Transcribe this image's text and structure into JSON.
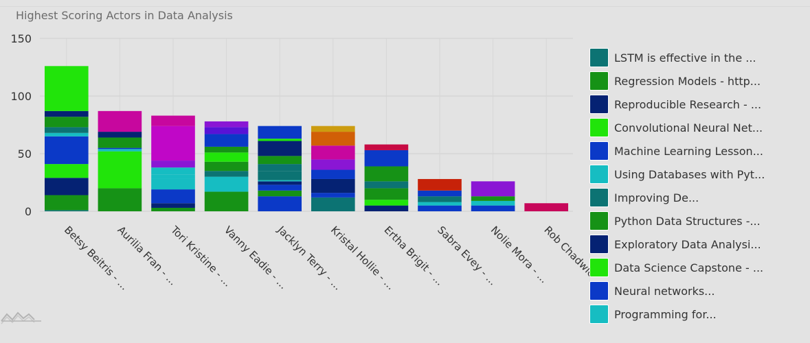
{
  "chart_data": {
    "type": "bar",
    "stacked": true,
    "title": "Highest Scoring Actors in Data Analysis",
    "xlabel": "",
    "ylabel": "",
    "ylim": [
      0,
      150
    ],
    "yticks": [
      0,
      50,
      100,
      150
    ],
    "grid": true,
    "legend_position": "right",
    "categories": [
      "Betsy Beitris - ...",
      "Aurilia Fran - ...",
      "Tori Kristine - ...",
      "Vanny Eadie - ...",
      "Jacklyn Terry - ...",
      "Kristal Hollie - ...",
      "Ertha Brigit - ...",
      "Sabra Evey - ...",
      "Nolie Mora - ...",
      "Rob Chadwick"
    ],
    "stacks": [
      [
        {
          "value": 1,
          "color": "#0c7373"
        },
        {
          "value": 13,
          "color": "#169216"
        },
        {
          "value": 15,
          "color": "#052273"
        },
        {
          "value": 12,
          "color": "#21e40a"
        },
        {
          "value": 24,
          "color": "#0b39c7"
        },
        {
          "value": 3,
          "color": "#16bdc2"
        },
        {
          "value": 5,
          "color": "#0c7373"
        },
        {
          "value": 9,
          "color": "#169216"
        },
        {
          "value": 5,
          "color": "#052273"
        },
        {
          "value": 39,
          "color": "#21e40a"
        }
      ],
      [
        {
          "value": 20,
          "color": "#169216"
        },
        {
          "value": 32,
          "color": "#21e40a"
        },
        {
          "value": 2,
          "color": "#16bdc2"
        },
        {
          "value": 1,
          "color": "#0b39c7"
        },
        {
          "value": 9,
          "color": "#169216"
        },
        {
          "value": 5,
          "color": "#052273"
        },
        {
          "value": 18,
          "color": "#c7079e"
        }
      ],
      [
        {
          "value": 3,
          "color": "#169216"
        },
        {
          "value": 4,
          "color": "#052273"
        },
        {
          "value": 12,
          "color": "#0b39c7"
        },
        {
          "value": 9,
          "color": "#16bdc2"
        },
        {
          "value": 4,
          "color": "#16bdc2"
        },
        {
          "value": 6,
          "color": "#16bdc2"
        },
        {
          "value": 6,
          "color": "#8a16d4"
        },
        {
          "value": 6,
          "color": "#c007c7"
        },
        {
          "value": 24,
          "color": "#c007c7"
        },
        {
          "value": 9,
          "color": "#c7079e"
        }
      ],
      [
        {
          "value": 17,
          "color": "#169216"
        },
        {
          "value": 13,
          "color": "#16bdc2"
        },
        {
          "value": 5,
          "color": "#0c7373"
        },
        {
          "value": 8,
          "color": "#169216"
        },
        {
          "value": 8,
          "color": "#21e40a"
        },
        {
          "value": 5,
          "color": "#169216"
        },
        {
          "value": 11,
          "color": "#0b39c7"
        },
        {
          "value": 6,
          "color": "#5813d6"
        },
        {
          "value": 5,
          "color": "#8a16d4"
        }
      ],
      [
        {
          "value": 13,
          "color": "#0b39c7"
        },
        {
          "value": 5,
          "color": "#169216"
        },
        {
          "value": 5,
          "color": "#0b39c7"
        },
        {
          "value": 3,
          "color": "#052273"
        },
        {
          "value": 1,
          "color": "#16bdc2"
        },
        {
          "value": 8,
          "color": "#0c7373"
        },
        {
          "value": 6,
          "color": "#0c7373"
        },
        {
          "value": 7,
          "color": "#169216"
        },
        {
          "value": 13,
          "color": "#052273"
        },
        {
          "value": 2,
          "color": "#21e40a"
        },
        {
          "value": 11,
          "color": "#0b39c7"
        }
      ],
      [
        {
          "value": 12,
          "color": "#0c7373"
        },
        {
          "value": 4,
          "color": "#0b39c7"
        },
        {
          "value": 12,
          "color": "#052273"
        },
        {
          "value": 8,
          "color": "#0b39c7"
        },
        {
          "value": 9,
          "color": "#8a16d4"
        },
        {
          "value": 12,
          "color": "#c7079e"
        },
        {
          "value": 12,
          "color": "#d15f07"
        },
        {
          "value": 5,
          "color": "#cc9c10"
        }
      ],
      [
        {
          "value": 5,
          "color": "#052273"
        },
        {
          "value": 5,
          "color": "#21e40a"
        },
        {
          "value": 10,
          "color": "#169216"
        },
        {
          "value": 6,
          "color": "#0c7373"
        },
        {
          "value": 13,
          "color": "#169216"
        },
        {
          "value": 14,
          "color": "#0b39c7"
        },
        {
          "value": 5,
          "color": "#c70a43"
        }
      ],
      [
        {
          "value": 5,
          "color": "#0b39c7"
        },
        {
          "value": 3,
          "color": "#16bdc2"
        },
        {
          "value": 5,
          "color": "#0c7373"
        },
        {
          "value": 5,
          "color": "#0b39c7"
        },
        {
          "value": 10,
          "color": "#c72209"
        }
      ],
      [
        {
          "value": 5,
          "color": "#0b39c7"
        },
        {
          "value": 4,
          "color": "#16bdc2"
        },
        {
          "value": 4,
          "color": "#169216"
        },
        {
          "value": 13,
          "color": "#8a16d4"
        }
      ],
      [
        {
          "value": 7,
          "color": "#c7075a"
        }
      ]
    ],
    "legend": [
      {
        "label": "LSTM is effective in the ...",
        "color": "#0c7373"
      },
      {
        "label": "Regression Models - http...",
        "color": "#169216"
      },
      {
        "label": "Reproducible Research - ...",
        "color": "#052273"
      },
      {
        "label": "Convolutional Neural Net...",
        "color": "#21e40a"
      },
      {
        "label": "Machine Learning Lesson...",
        "color": "#0b39c7"
      },
      {
        "label": "Using Databases with Pyt...",
        "color": "#16bdc2"
      },
      {
        "label": "Improving De...",
        "color": "#0c7373"
      },
      {
        "label": "Python Data Structures -...",
        "color": "#169216"
      },
      {
        "label": "Exploratory Data Analysi...",
        "color": "#052273"
      },
      {
        "label": "Data Science Capstone - ...",
        "color": "#21e40a"
      },
      {
        "label": "Neural networks...",
        "color": "#0b39c7"
      },
      {
        "label": "Programming for...",
        "color": "#16bdc2"
      }
    ]
  }
}
